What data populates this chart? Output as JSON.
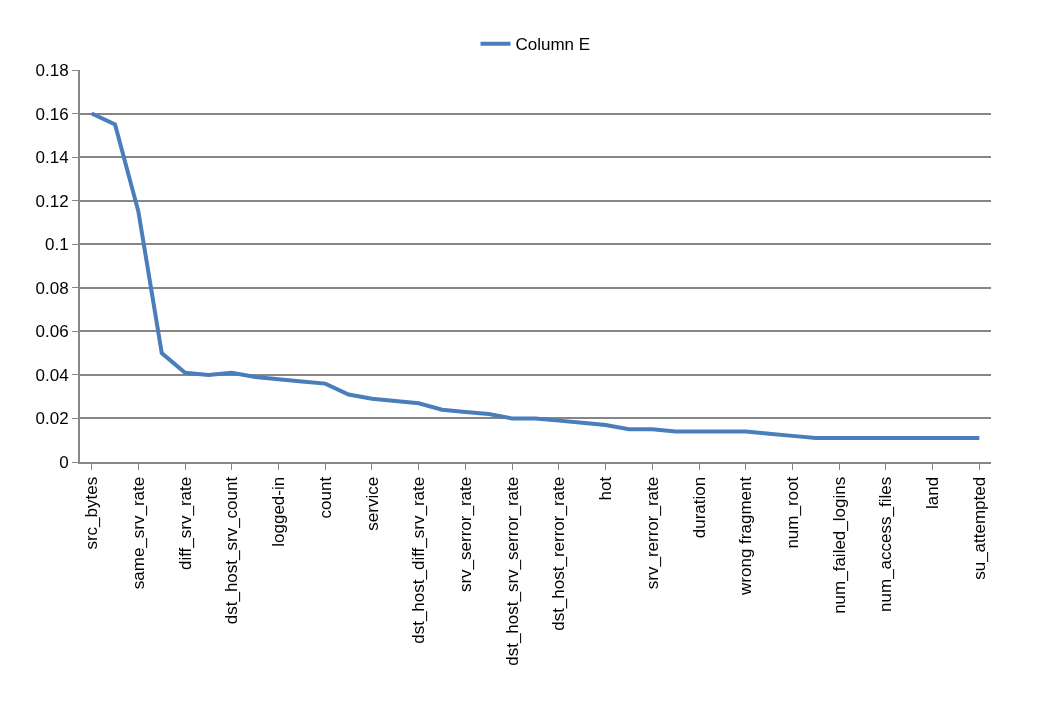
{
  "chart_data": {
    "type": "line",
    "categories": [
      "src_bytes",
      null,
      "same_srv_rate",
      null,
      "diff_srv_rate",
      null,
      "dst_host_srv_count",
      null,
      "logged-in",
      null,
      "count",
      null,
      "service",
      null,
      "dst_host_diff_srv_rate",
      null,
      "srv_serror_rate",
      null,
      "dst_host_srv_serror_rate",
      null,
      "dst_host_rerror_rate",
      null,
      "hot",
      null,
      "srv_rerror_rate",
      null,
      "duration",
      null,
      "wrong fragment",
      null,
      "num_root",
      null,
      "num_failed_logins",
      null,
      "num_access_files",
      null,
      "land",
      null,
      "su_attempted"
    ],
    "series": [
      {
        "name": "Column E",
        "color": "#4a7ebb",
        "values": [
          0.16,
          0.155,
          0.115,
          0.05,
          0.041,
          0.04,
          0.041,
          0.039,
          0.038,
          0.037,
          0.036,
          0.031,
          0.029,
          0.028,
          0.027,
          0.024,
          0.023,
          0.022,
          0.02,
          0.02,
          0.019,
          0.018,
          0.017,
          0.015,
          0.015,
          0.014,
          0.014,
          0.014,
          0.014,
          0.013,
          0.012,
          0.011,
          0.011,
          0.011,
          0.011,
          0.011,
          0.011,
          0.011,
          0.011
        ]
      }
    ],
    "ylim": [
      0,
      0.18
    ],
    "yticks": [
      0,
      0.02,
      0.04,
      0.06,
      0.08,
      0.1,
      0.12,
      0.14,
      0.16,
      0.18
    ],
    "grid": "y",
    "legend": "top",
    "marker": "none",
    "line_style": "solid"
  }
}
